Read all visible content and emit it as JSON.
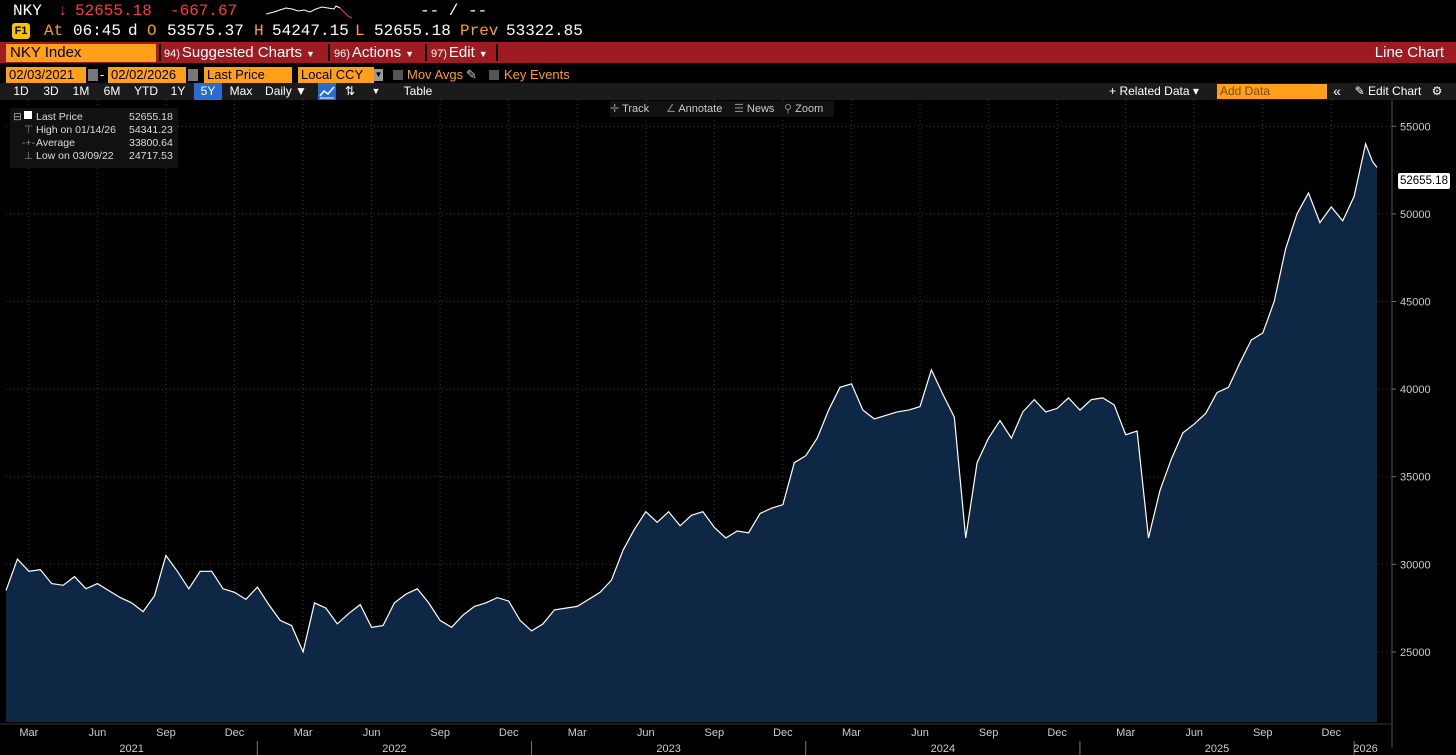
{
  "quote": {
    "ticker": "NKY",
    "arrow": "↓",
    "last": "52655.18",
    "change": "-667.67",
    "bid_ask": "-- / --",
    "icon": "F1",
    "at_label": "At",
    "time": "06:45",
    "d": "d",
    "o_label": "O",
    "open": "53575.37",
    "h_label": "H",
    "high": "54247.15",
    "l_label": "L",
    "low": "52655.18",
    "prev_label": "Prev",
    "prev": "53322.85"
  },
  "cmdbar": {
    "ticker_field": "NKY Index",
    "menus": [
      {
        "num": "94)",
        "label": "Suggested Charts"
      },
      {
        "num": "96)",
        "label": "Actions"
      },
      {
        "num": "97)",
        "label": "Edit"
      }
    ],
    "right_title": "Line Chart"
  },
  "datebar": {
    "start": "02/03/2021",
    "dash": "-",
    "end": "02/02/2026",
    "field": "Last Price",
    "currency": "Local CCY",
    "mov_avgs": "Mov Avgs",
    "key_events": "Key Events"
  },
  "periodbar": {
    "periods": [
      "1D",
      "3D",
      "1M",
      "6M",
      "YTD",
      "1Y",
      "5Y",
      "Max"
    ],
    "selected": "5Y",
    "frequency": "Daily ▼",
    "table": "Table",
    "related": "+ Related Data ▾",
    "add_placeholder": "Add Data",
    "edit_chart": "✎ Edit Chart",
    "collapse": "«"
  },
  "tools": [
    "Track",
    "Annotate",
    "News",
    "Zoom"
  ],
  "legend": [
    {
      "label": "Last Price",
      "value": "52655.18"
    },
    {
      "label": "High on 01/14/26",
      "value": "54341.23"
    },
    {
      "label": "Average",
      "value": "33800.64"
    },
    {
      "label": "Low on 03/09/22",
      "value": "24717.53"
    }
  ],
  "colors": {
    "accent": "#ff9f1a",
    "command_bar": "#9e1b22",
    "area_fill": "#0d2744",
    "line": "#ffffff",
    "down": "#ff3b3b"
  },
  "chart_data": {
    "type": "area",
    "ylim": [
      21000,
      56500
    ],
    "yticks": [
      "25000",
      "30000",
      "35000",
      "40000",
      "45000",
      "50000",
      "55000"
    ],
    "last_label": "52655.18",
    "month_ticks": [
      {
        "label": "Mar",
        "m": 1
      },
      {
        "label": "Jun",
        "m": 4
      },
      {
        "label": "Sep",
        "m": 7
      },
      {
        "label": "Dec",
        "m": 10
      },
      {
        "label": "Mar",
        "m": 13
      },
      {
        "label": "Jun",
        "m": 16
      },
      {
        "label": "Sep",
        "m": 19
      },
      {
        "label": "Dec",
        "m": 22
      },
      {
        "label": "Mar",
        "m": 25
      },
      {
        "label": "Jun",
        "m": 28
      },
      {
        "label": "Sep",
        "m": 31
      },
      {
        "label": "Dec",
        "m": 34
      },
      {
        "label": "Mar",
        "m": 37
      },
      {
        "label": "Jun",
        "m": 40
      },
      {
        "label": "Sep",
        "m": 43
      },
      {
        "label": "Dec",
        "m": 46
      },
      {
        "label": "Mar",
        "m": 49
      },
      {
        "label": "Jun",
        "m": 52
      },
      {
        "label": "Sep",
        "m": 55
      },
      {
        "label": "Dec",
        "m": 58
      }
    ],
    "years": [
      {
        "label": "2021",
        "start": 0,
        "end": 11
      },
      {
        "label": "2022",
        "start": 11,
        "end": 23
      },
      {
        "label": "2023",
        "start": 23,
        "end": 35
      },
      {
        "label": "2024",
        "start": 35,
        "end": 47
      },
      {
        "label": "2025",
        "start": 47,
        "end": 59
      },
      {
        "label": "2026",
        "start": 59,
        "end": 60
      }
    ],
    "series": [
      {
        "points": [
          [
            0,
            28500
          ],
          [
            0.5,
            30300
          ],
          [
            1,
            29600
          ],
          [
            1.5,
            29700
          ],
          [
            2,
            28900
          ],
          [
            2.5,
            28800
          ],
          [
            3,
            29300
          ],
          [
            3.5,
            28600
          ],
          [
            4,
            28900
          ],
          [
            4.5,
            28500
          ],
          [
            5,
            28100
          ],
          [
            5.5,
            27800
          ],
          [
            6,
            27300
          ],
          [
            6.5,
            28200
          ],
          [
            7,
            30500
          ],
          [
            7.5,
            29600
          ],
          [
            8,
            28600
          ],
          [
            8.5,
            29600
          ],
          [
            9,
            29600
          ],
          [
            9.5,
            28600
          ],
          [
            10,
            28400
          ],
          [
            10.5,
            28000
          ],
          [
            11,
            28700
          ],
          [
            11.5,
            27700
          ],
          [
            12,
            26800
          ],
          [
            12.5,
            26500
          ],
          [
            13,
            25000
          ],
          [
            13.5,
            27800
          ],
          [
            14,
            27500
          ],
          [
            14.5,
            26600
          ],
          [
            15,
            27200
          ],
          [
            15.5,
            27700
          ],
          [
            16,
            26400
          ],
          [
            16.5,
            26500
          ],
          [
            17,
            27800
          ],
          [
            17.5,
            28300
          ],
          [
            18,
            28600
          ],
          [
            18.5,
            27800
          ],
          [
            19,
            26800
          ],
          [
            19.5,
            26400
          ],
          [
            20,
            27100
          ],
          [
            20.5,
            27600
          ],
          [
            21,
            27800
          ],
          [
            21.5,
            28100
          ],
          [
            22,
            27900
          ],
          [
            22.5,
            26800
          ],
          [
            23,
            26200
          ],
          [
            23.5,
            26600
          ],
          [
            24,
            27400
          ],
          [
            24.5,
            27500
          ],
          [
            25,
            27600
          ],
          [
            25.5,
            28000
          ],
          [
            26,
            28400
          ],
          [
            26.5,
            29100
          ],
          [
            27,
            30800
          ],
          [
            27.5,
            32000
          ],
          [
            28,
            33000
          ],
          [
            28.5,
            32400
          ],
          [
            29,
            33000
          ],
          [
            29.5,
            32200
          ],
          [
            30,
            32800
          ],
          [
            30.5,
            33000
          ],
          [
            31,
            32100
          ],
          [
            31.5,
            31500
          ],
          [
            32,
            31900
          ],
          [
            32.5,
            31800
          ],
          [
            33,
            32900
          ],
          [
            33.5,
            33200
          ],
          [
            34,
            33400
          ],
          [
            34.5,
            35800
          ],
          [
            35,
            36200
          ],
          [
            35.5,
            37200
          ],
          [
            36,
            38800
          ],
          [
            36.5,
            40100
          ],
          [
            37,
            40300
          ],
          [
            37.5,
            38800
          ],
          [
            38,
            38300
          ],
          [
            38.5,
            38500
          ],
          [
            39,
            38700
          ],
          [
            39.5,
            38800
          ],
          [
            40,
            39000
          ],
          [
            40.5,
            41100
          ],
          [
            41,
            39700
          ],
          [
            41.5,
            38400
          ],
          [
            42,
            31500
          ],
          [
            42.5,
            35800
          ],
          [
            43,
            37200
          ],
          [
            43.5,
            38200
          ],
          [
            44,
            37200
          ],
          [
            44.5,
            38700
          ],
          [
            45,
            39400
          ],
          [
            45.5,
            38700
          ],
          [
            46,
            38900
          ],
          [
            46.5,
            39500
          ],
          [
            47,
            38800
          ],
          [
            47.5,
            39400
          ],
          [
            48,
            39500
          ],
          [
            48.5,
            39100
          ],
          [
            49,
            37400
          ],
          [
            49.5,
            37600
          ],
          [
            50,
            31500
          ],
          [
            50.5,
            34200
          ],
          [
            51,
            36000
          ],
          [
            51.5,
            37500
          ],
          [
            52,
            38000
          ],
          [
            52.5,
            38600
          ],
          [
            53,
            39800
          ],
          [
            53.5,
            40100
          ],
          [
            54,
            41500
          ],
          [
            54.5,
            42800
          ],
          [
            55,
            43200
          ],
          [
            55.5,
            45000
          ],
          [
            56,
            48000
          ],
          [
            56.5,
            50000
          ],
          [
            57,
            51200
          ],
          [
            57.5,
            49500
          ],
          [
            58,
            50400
          ],
          [
            58.5,
            49600
          ],
          [
            59,
            51000
          ],
          [
            59.5,
            54000
          ],
          [
            59.8,
            53000
          ],
          [
            60,
            52655
          ]
        ]
      }
    ]
  }
}
